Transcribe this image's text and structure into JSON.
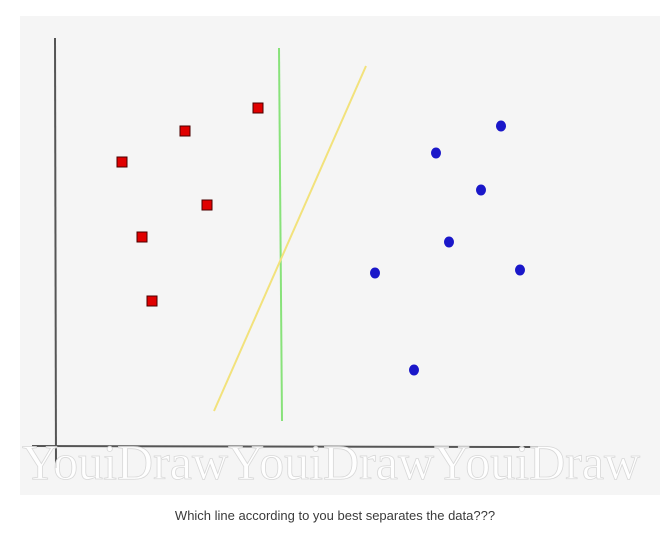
{
  "caption": "Which line according to you best separates the data???",
  "watermark": "YouiDrawYouiDrawYouiDraw",
  "colors": {
    "square_fill": "#e00000",
    "square_stroke": "#4a0000",
    "circle_fill": "#1a17c9",
    "axis": "#555555",
    "green_line": "#88e27a",
    "yellow_line": "#f2e27c",
    "figure_background": "#f5f5f5"
  },
  "icons": {
    "square": "red-square-marker",
    "circle": "blue-circle-marker"
  }
}
